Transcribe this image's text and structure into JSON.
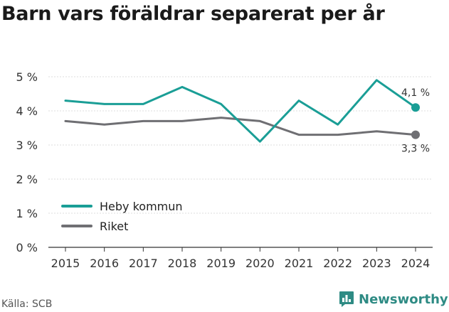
{
  "title": "Barn vars föräldrar separerat per år",
  "source": "Källa: SCB",
  "brand": "Newsworthy",
  "colors": {
    "heby": "#1a9e96",
    "riket": "#6f6f73",
    "grid": "#dddddd",
    "axis": "#333333"
  },
  "chart_data": {
    "type": "line",
    "x": [
      "2015",
      "2016",
      "2017",
      "2018",
      "2019",
      "2020",
      "2021",
      "2022",
      "2023",
      "2024"
    ],
    "ylim": [
      0,
      5
    ],
    "yticks": [
      0,
      1,
      2,
      3,
      4,
      5
    ],
    "ytick_labels": [
      "0 %",
      "1 %",
      "2 %",
      "3 %",
      "4 %",
      "5 %"
    ],
    "grid": true,
    "legend": "bottom-left",
    "series": [
      {
        "name": "Heby kommun",
        "color": "#1a9e96",
        "values": [
          4.3,
          4.2,
          4.2,
          4.7,
          4.2,
          3.1,
          4.3,
          3.6,
          4.9,
          4.1
        ],
        "end_label": "4,1 %"
      },
      {
        "name": "Riket",
        "color": "#6f6f73",
        "values": [
          3.7,
          3.6,
          3.7,
          3.7,
          3.8,
          3.7,
          3.3,
          3.3,
          3.4,
          3.3
        ],
        "end_label": "3,3 %"
      }
    ]
  }
}
